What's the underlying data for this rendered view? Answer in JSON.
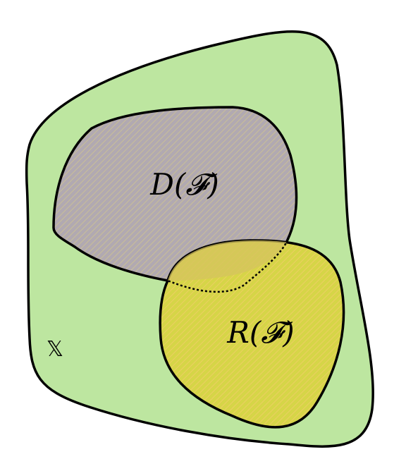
{
  "diagram": {
    "universe": {
      "label": "𝕏",
      "fill": "#bde6a0",
      "stroke": "#000000"
    },
    "domain": {
      "label": "D(𝓕)",
      "fill": "#b3aab2",
      "hatch": "#c8bf9a"
    },
    "range": {
      "label": "R(𝓕)",
      "fill": "#d8d84a",
      "hatch": "#e8d45a"
    }
  }
}
